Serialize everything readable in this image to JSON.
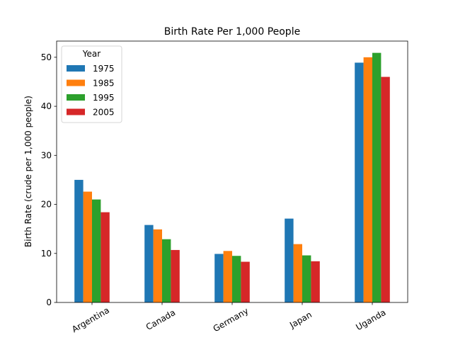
{
  "chart_data": {
    "type": "bar",
    "title": "Birth Rate Per 1,000 People",
    "xlabel": "",
    "ylabel": "Birth Rate (crude per 1,000 people)",
    "categories": [
      "Argentina",
      "Canada",
      "Germany",
      "Japan",
      "Uganda"
    ],
    "series": [
      {
        "name": "1975",
        "color": "#1f77b4",
        "values": [
          25.0,
          15.8,
          9.9,
          17.1,
          48.9
        ]
      },
      {
        "name": "1985",
        "color": "#ff7f0e",
        "values": [
          22.6,
          14.9,
          10.5,
          11.9,
          50.0
        ]
      },
      {
        "name": "1995",
        "color": "#2ca02c",
        "values": [
          21.0,
          12.9,
          9.5,
          9.6,
          50.9
        ]
      },
      {
        "name": "2005",
        "color": "#d62728",
        "values": [
          18.4,
          10.7,
          8.3,
          8.4,
          46.0
        ]
      }
    ],
    "ylim": [
      0,
      53.3
    ],
    "yticks": [
      0,
      10,
      20,
      30,
      40,
      50
    ],
    "ytick_labels": [
      "0",
      "10",
      "20",
      "30",
      "40",
      "50"
    ],
    "grid": false,
    "legend": {
      "title": "Year",
      "placement": "top-left"
    }
  }
}
